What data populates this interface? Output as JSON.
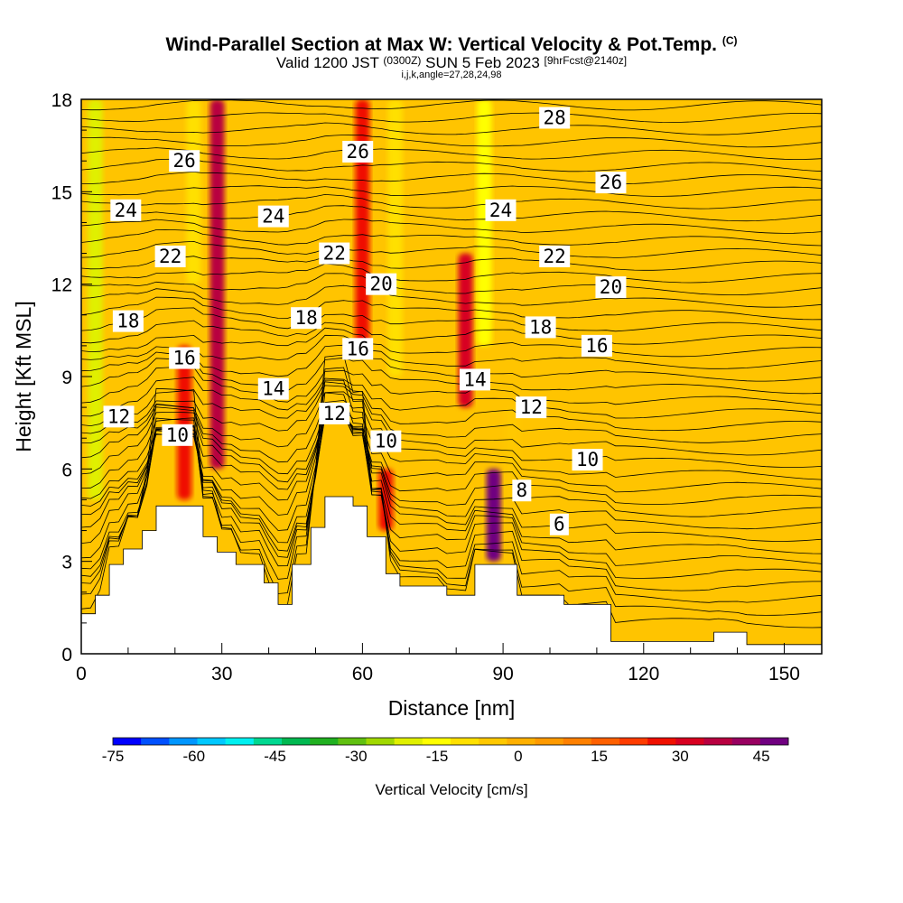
{
  "header": {
    "title": "Wind-Parallel Section at Max W: Vertical Velocity & Pot.Temp.",
    "copyright": "(C)",
    "valid_prefix": "Valid 1200 JST",
    "valid_z": "(0300Z)",
    "valid_date": "SUN 5 Feb 2023",
    "forecast": "[9hrFcst@2140z]",
    "indices": "i,j,k,angle=27,28,24,98"
  },
  "colors": {
    "terrain": "#ffffff",
    "contour_line": "#000000",
    "colorbar": [
      "#0000ff",
      "#0050ff",
      "#0096ff",
      "#00c8ff",
      "#00f0f0",
      "#00d890",
      "#00b850",
      "#20b020",
      "#60c010",
      "#a0d800",
      "#e0f000",
      "#ffff00",
      "#ffe000",
      "#ffc800",
      "#ffb000",
      "#ff9a00",
      "#ff8000",
      "#ff6000",
      "#ff3c00",
      "#f01000",
      "#d80020",
      "#b80040",
      "#980060",
      "#700080"
    ]
  },
  "chart_data": {
    "type": "heatmap",
    "xlabel": "Distance [nm]",
    "ylabel": "Height [Kft MSL]",
    "xlim": [
      0,
      158
    ],
    "ylim": [
      0,
      18
    ],
    "x_ticks": [
      0,
      30,
      60,
      90,
      120,
      150
    ],
    "x_tick_labels": [
      "0",
      "30",
      "60",
      "90",
      "120",
      "150"
    ],
    "y_ticks": [
      0,
      3,
      6,
      9,
      12,
      15,
      18
    ],
    "y_tick_labels": [
      "0",
      "3",
      "6",
      "9",
      "12",
      "15",
      "18"
    ],
    "terrain_profile_kft": [
      [
        0,
        1.3
      ],
      [
        3,
        1.3
      ],
      [
        3,
        1.9
      ],
      [
        6,
        1.9
      ],
      [
        6,
        2.9
      ],
      [
        9,
        2.9
      ],
      [
        9,
        3.4
      ],
      [
        13,
        3.4
      ],
      [
        13,
        4.0
      ],
      [
        16,
        4.0
      ],
      [
        16,
        4.8
      ],
      [
        26,
        4.8
      ],
      [
        26,
        3.8
      ],
      [
        29,
        3.8
      ],
      [
        29,
        3.3
      ],
      [
        33,
        3.3
      ],
      [
        33,
        2.9
      ],
      [
        39,
        2.9
      ],
      [
        39,
        2.3
      ],
      [
        42,
        2.3
      ],
      [
        42,
        1.6
      ],
      [
        45,
        1.6
      ],
      [
        45,
        2.9
      ],
      [
        49,
        2.9
      ],
      [
        49,
        4.1
      ],
      [
        52,
        4.1
      ],
      [
        52,
        5.1
      ],
      [
        58,
        5.1
      ],
      [
        58,
        4.8
      ],
      [
        61,
        4.8
      ],
      [
        61,
        3.8
      ],
      [
        65,
        3.8
      ],
      [
        65,
        2.6
      ],
      [
        68,
        2.6
      ],
      [
        68,
        2.2
      ],
      [
        78,
        2.2
      ],
      [
        78,
        1.9
      ],
      [
        84,
        1.9
      ],
      [
        84,
        2.9
      ],
      [
        93,
        2.9
      ],
      [
        93,
        1.9
      ],
      [
        103,
        1.9
      ],
      [
        103,
        1.6
      ],
      [
        113,
        1.6
      ],
      [
        113,
        0.4
      ],
      [
        135,
        0.4
      ],
      [
        135,
        0.7
      ],
      [
        142,
        0.7
      ],
      [
        142,
        0.3
      ],
      [
        158,
        0.3
      ],
      [
        158,
        0.6
      ]
    ],
    "colorbar": {
      "label": "Vertical Velocity [cm/s]",
      "min": -75,
      "max": 50,
      "step": 5,
      "tick_values": [
        -75,
        -60,
        -45,
        -30,
        -15,
        0,
        15,
        30,
        45
      ],
      "tick_labels": [
        "-75",
        "-60",
        "-45",
        "-30",
        "-15",
        "0",
        "15",
        "30",
        "45"
      ]
    },
    "vertical_velocity_features": [
      {
        "x": 3,
        "y_range": [
          5,
          18
        ],
        "w_cms": -25
      },
      {
        "x": 22,
        "y_range": [
          5,
          10
        ],
        "w_cms": 20
      },
      {
        "x": 29,
        "y_range": [
          6,
          18
        ],
        "w_cms": 30
      },
      {
        "x": 24,
        "y_range": [
          12,
          18
        ],
        "w_cms": -15
      },
      {
        "x": 60,
        "y_range": [
          10,
          18
        ],
        "w_cms": 20
      },
      {
        "x": 65,
        "y_range": [
          4,
          6
        ],
        "w_cms": 20
      },
      {
        "x": 67,
        "y_range": [
          9,
          18
        ],
        "w_cms": -15
      },
      {
        "x": 82,
        "y_range": [
          8,
          13
        ],
        "w_cms": 25
      },
      {
        "x": 88,
        "y_range": [
          3,
          6
        ],
        "w_cms": 45
      },
      {
        "x": 86,
        "y_range": [
          10,
          18
        ],
        "w_cms": -20
      },
      {
        "x": 92,
        "y_range": [
          5,
          8
        ],
        "w_cms": -10
      }
    ],
    "theta_contour_labels": [
      {
        "value": "26",
        "x": 22,
        "y": 16.0
      },
      {
        "value": "24",
        "x": 9.5,
        "y": 14.4
      },
      {
        "value": "22",
        "x": 19,
        "y": 12.9
      },
      {
        "value": "18",
        "x": 10,
        "y": 10.8
      },
      {
        "value": "16",
        "x": 22,
        "y": 9.6
      },
      {
        "value": "12",
        "x": 8,
        "y": 7.7
      },
      {
        "value": "10",
        "x": 20.5,
        "y": 7.1
      },
      {
        "value": "24",
        "x": 41,
        "y": 14.2
      },
      {
        "value": "18",
        "x": 48,
        "y": 10.9
      },
      {
        "value": "14",
        "x": 41,
        "y": 8.6
      },
      {
        "value": "26",
        "x": 59,
        "y": 16.3
      },
      {
        "value": "22",
        "x": 54,
        "y": 13.0
      },
      {
        "value": "12",
        "x": 54,
        "y": 7.8
      },
      {
        "value": "16",
        "x": 59,
        "y": 9.9
      },
      {
        "value": "20",
        "x": 64,
        "y": 12.0
      },
      {
        "value": "10",
        "x": 65,
        "y": 6.9
      },
      {
        "value": "24",
        "x": 89.5,
        "y": 14.4
      },
      {
        "value": "14",
        "x": 84,
        "y": 8.9
      },
      {
        "value": "28",
        "x": 101,
        "y": 17.4
      },
      {
        "value": "26",
        "x": 113,
        "y": 15.3
      },
      {
        "value": "22",
        "x": 101,
        "y": 12.9
      },
      {
        "value": "20",
        "x": 113,
        "y": 11.9
      },
      {
        "value": "18",
        "x": 98,
        "y": 10.6
      },
      {
        "value": "16",
        "x": 110,
        "y": 10.0
      },
      {
        "value": "12",
        "x": 96,
        "y": 8.0
      },
      {
        "value": "10",
        "x": 108,
        "y": 6.3
      },
      {
        "value": "8",
        "x": 94,
        "y": 5.3
      },
      {
        "value": "6",
        "x": 102,
        "y": 4.2
      }
    ]
  }
}
